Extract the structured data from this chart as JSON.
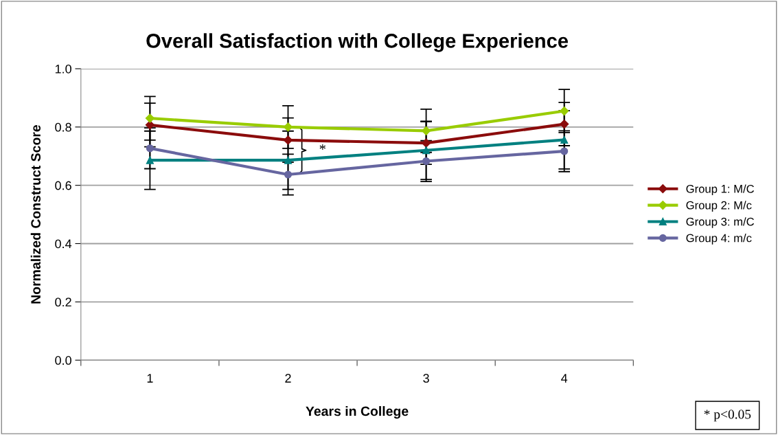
{
  "chart_data": {
    "type": "line",
    "title": "Overall Satisfaction with College Experience",
    "xlabel": "Years in College",
    "ylabel": "Normalized Construct Score",
    "categories": [
      "1",
      "2",
      "3",
      "4"
    ],
    "series": [
      {
        "name": "Group 1: M/C",
        "color": "#8b0c0c",
        "marker": "diamond",
        "values": [
          0.807,
          0.755,
          0.745,
          0.81
        ],
        "errors": [
          0.075,
          0.076,
          0.073,
          0.074
        ]
      },
      {
        "name": "Group 2: M/c",
        "color": "#99cc00",
        "marker": "diamond",
        "values": [
          0.83,
          0.8,
          0.787,
          0.855
        ],
        "errors": [
          0.075,
          0.073,
          0.074,
          0.074
        ]
      },
      {
        "name": "Group 3: m/C",
        "color": "#008080",
        "marker": "triangle",
        "values": [
          0.686,
          0.686,
          0.72,
          0.756
        ],
        "errors": [
          0.1,
          0.1,
          0.1,
          0.1
        ]
      },
      {
        "name": "Group 4: m/c",
        "color": "#6666a0",
        "marker": "circle",
        "values": [
          0.727,
          0.637,
          0.683,
          0.717
        ],
        "errors": [
          0.07,
          0.07,
          0.07,
          0.07
        ]
      }
    ],
    "ylim": [
      0,
      1
    ],
    "yticks": [
      {
        "value": 0,
        "label": "0.0"
      },
      0.2,
      0.4,
      0.6,
      0.8,
      {
        "value": 1,
        "label": "1.0"
      }
    ],
    "grid": "y",
    "legend": "right",
    "annotations": [
      {
        "text": "*",
        "x": "2",
        "y": 0.72
      },
      "* p<0.05"
    ]
  }
}
